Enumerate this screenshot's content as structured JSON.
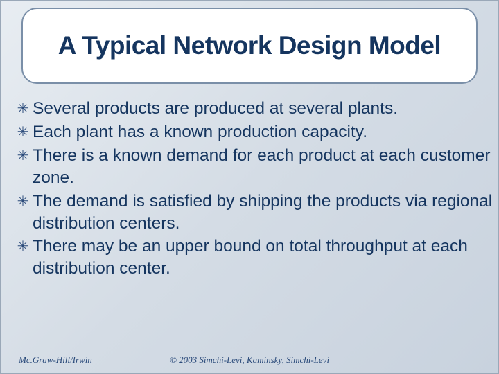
{
  "title": "A Typical Network Design Model",
  "bullets": [
    "Several products are produced at several plants.",
    "Each plant has a known production capacity.",
    "There is a known demand for each product at each customer zone.",
    "The demand is satisfied by shipping the products via regional distribution centers.",
    "There may be an upper bound on total throughput at each distribution center."
  ],
  "footer_left": "Mc.Graw-Hill/Irwin",
  "footer_center": "© 2003 Simchi-Levi, Kaminsky, Simchi-Levi",
  "colors": {
    "title_color": "#15355f",
    "bullet_color": "#15355f",
    "border_color": "#7a8fa8",
    "bg_gradient_start": "#e8edf2",
    "bg_gradient_end": "#c8d2de"
  },
  "bullet_glyph": "✳"
}
